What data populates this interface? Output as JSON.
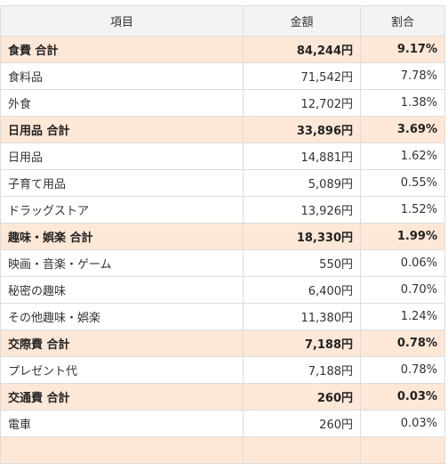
{
  "header": {
    "item": "項目",
    "amount": "金額",
    "ratio": "割合"
  },
  "colors": {
    "total_row_bg": "#fde7d6",
    "header_bg": "#f3f3f3",
    "border": "#dddddd"
  },
  "rows": [
    {
      "type": "total",
      "name": "食費 合計",
      "amount": "84,244円",
      "ratio": "9.17%"
    },
    {
      "type": "item",
      "name": "食料品",
      "amount": "71,542円",
      "ratio": "7.78%"
    },
    {
      "type": "item",
      "name": "外食",
      "amount": "12,702円",
      "ratio": "1.38%"
    },
    {
      "type": "total",
      "name": "日用品 合計",
      "amount": "33,896円",
      "ratio": "3.69%"
    },
    {
      "type": "item",
      "name": "日用品",
      "amount": "14,881円",
      "ratio": "1.62%"
    },
    {
      "type": "item",
      "name": "子育て用品",
      "amount": "5,089円",
      "ratio": "0.55%"
    },
    {
      "type": "item",
      "name": "ドラッグストア",
      "amount": "13,926円",
      "ratio": "1.52%"
    },
    {
      "type": "total",
      "name": "趣味・娯楽 合計",
      "amount": "18,330円",
      "ratio": "1.99%"
    },
    {
      "type": "item",
      "name": "映画・音楽・ゲーム",
      "amount": "550円",
      "ratio": "0.06%"
    },
    {
      "type": "item",
      "name": "秘密の趣味",
      "amount": "6,400円",
      "ratio": "0.70%"
    },
    {
      "type": "item",
      "name": "その他趣味・娯楽",
      "amount": "11,380円",
      "ratio": "1.24%"
    },
    {
      "type": "total",
      "name": "交際費 合計",
      "amount": "7,188円",
      "ratio": "0.78%"
    },
    {
      "type": "item",
      "name": "プレゼント代",
      "amount": "7,188円",
      "ratio": "0.78%"
    },
    {
      "type": "total",
      "name": "交通費 合計",
      "amount": "260円",
      "ratio": "0.03%"
    },
    {
      "type": "item",
      "name": "電車",
      "amount": "260円",
      "ratio": "0.03%"
    }
  ]
}
